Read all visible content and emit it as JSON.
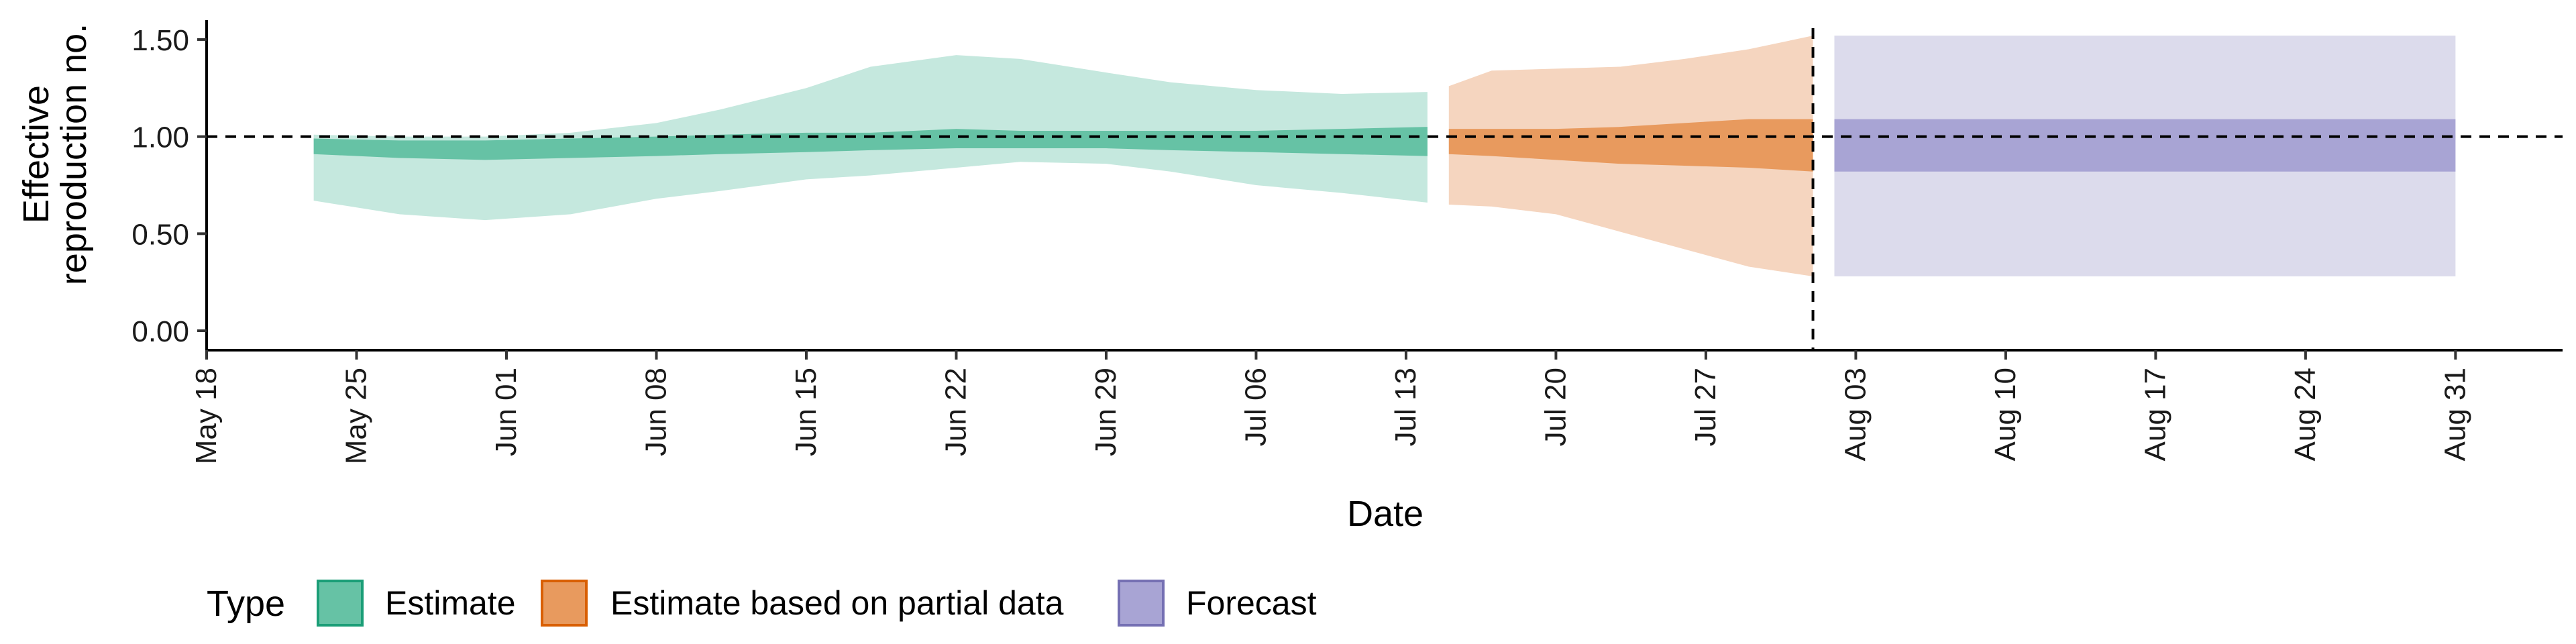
{
  "chart_data": {
    "type": "area",
    "title": "",
    "xlabel": "Date",
    "ylabel_lines": [
      "Effective",
      "reproduction no."
    ],
    "x_ticks": [
      "May 18",
      "May 25",
      "Jun 01",
      "Jun 08",
      "Jun 15",
      "Jun 22",
      "Jun 29",
      "Jul 06",
      "Jul 13",
      "Jul 20",
      "Jul 27",
      "Aug 03",
      "Aug 10",
      "Aug 17",
      "Aug 24",
      "Aug 31"
    ],
    "x_tick_dates": [
      "2020-05-18",
      "2020-05-25",
      "2020-06-01",
      "2020-06-08",
      "2020-06-15",
      "2020-06-22",
      "2020-06-29",
      "2020-07-06",
      "2020-07-13",
      "2020-07-20",
      "2020-07-27",
      "2020-08-03",
      "2020-08-10",
      "2020-08-17",
      "2020-08-24",
      "2020-08-31"
    ],
    "xlim": [
      "2020-05-18",
      "2020-09-05"
    ],
    "ylim": [
      -0.1,
      1.6
    ],
    "y_ticks": [
      0.0,
      0.5,
      1.0,
      1.5
    ],
    "y_tick_labels": [
      "0.00",
      "0.50",
      "1.00",
      "1.50"
    ],
    "hline": 1.0,
    "vline": "2020-08-01",
    "grid": false,
    "legend": {
      "title": "Type",
      "position": "bottom",
      "entries": [
        "Estimate",
        "Estimate based on partial data",
        "Forecast"
      ]
    },
    "series": [
      {
        "name": "Estimate",
        "fill_color": "#66C2A5",
        "outer_color": "#C5E8DE",
        "points": [
          {
            "date": "2020-05-23",
            "lo90": 0.67,
            "lo50": 0.91,
            "hi50": 0.99,
            "hi90": 1.01
          },
          {
            "date": "2020-05-27",
            "lo90": 0.6,
            "lo50": 0.89,
            "hi50": 0.98,
            "hi90": 1.0
          },
          {
            "date": "2020-05-31",
            "lo90": 0.57,
            "lo50": 0.88,
            "hi50": 0.98,
            "hi90": 1.0
          },
          {
            "date": "2020-06-04",
            "lo90": 0.6,
            "lo50": 0.89,
            "hi50": 0.99,
            "hi90": 1.02
          },
          {
            "date": "2020-06-08",
            "lo90": 0.68,
            "lo50": 0.9,
            "hi50": 1.0,
            "hi90": 1.07
          },
          {
            "date": "2020-06-11",
            "lo90": 0.72,
            "lo50": 0.91,
            "hi50": 1.01,
            "hi90": 1.14
          },
          {
            "date": "2020-06-15",
            "lo90": 0.78,
            "lo50": 0.92,
            "hi50": 1.02,
            "hi90": 1.25
          },
          {
            "date": "2020-06-18",
            "lo90": 0.8,
            "lo50": 0.93,
            "hi50": 1.02,
            "hi90": 1.36
          },
          {
            "date": "2020-06-22",
            "lo90": 0.84,
            "lo50": 0.94,
            "hi50": 1.04,
            "hi90": 1.42
          },
          {
            "date": "2020-06-25",
            "lo90": 0.87,
            "lo50": 0.94,
            "hi50": 1.03,
            "hi90": 1.4
          },
          {
            "date": "2020-06-29",
            "lo90": 0.86,
            "lo50": 0.94,
            "hi50": 1.03,
            "hi90": 1.33
          },
          {
            "date": "2020-07-02",
            "lo90": 0.82,
            "lo50": 0.93,
            "hi50": 1.03,
            "hi90": 1.28
          },
          {
            "date": "2020-07-06",
            "lo90": 0.75,
            "lo50": 0.92,
            "hi50": 1.03,
            "hi90": 1.24
          },
          {
            "date": "2020-07-10",
            "lo90": 0.71,
            "lo50": 0.91,
            "hi50": 1.04,
            "hi90": 1.22
          },
          {
            "date": "2020-07-14",
            "lo90": 0.66,
            "lo50": 0.9,
            "hi50": 1.05,
            "hi90": 1.23
          }
        ]
      },
      {
        "name": "Estimate based on partial data",
        "fill_color": "#E89A5E",
        "outer_color": "#F5D5BF",
        "points": [
          {
            "date": "2020-07-15",
            "lo90": 0.65,
            "lo50": 0.91,
            "hi50": 1.04,
            "hi90": 1.26
          },
          {
            "date": "2020-07-17",
            "lo90": 0.64,
            "lo50": 0.9,
            "hi50": 1.04,
            "hi90": 1.34
          },
          {
            "date": "2020-07-20",
            "lo90": 0.6,
            "lo50": 0.88,
            "hi50": 1.04,
            "hi90": 1.35
          },
          {
            "date": "2020-07-23",
            "lo90": 0.51,
            "lo50": 0.86,
            "hi50": 1.05,
            "hi90": 1.36
          },
          {
            "date": "2020-07-26",
            "lo90": 0.42,
            "lo50": 0.85,
            "hi50": 1.07,
            "hi90": 1.4
          },
          {
            "date": "2020-07-29",
            "lo90": 0.33,
            "lo50": 0.84,
            "hi50": 1.09,
            "hi90": 1.45
          },
          {
            "date": "2020-08-01",
            "lo90": 0.28,
            "lo50": 0.82,
            "hi50": 1.09,
            "hi90": 1.52
          }
        ]
      },
      {
        "name": "Forecast",
        "fill_color": "#A8A4D4",
        "outer_color": "#DCDBEC",
        "points": [
          {
            "date": "2020-08-02",
            "lo90": 0.28,
            "lo50": 0.82,
            "hi50": 1.09,
            "hi90": 1.52
          },
          {
            "date": "2020-08-31",
            "lo90": 0.28,
            "lo50": 0.82,
            "hi50": 1.09,
            "hi90": 1.52
          }
        ]
      }
    ]
  },
  "colors": {
    "estimate": "#66C2A5",
    "partial": "#E89A5E",
    "forecast": "#A8A4D4",
    "estimate_border": "#1B9E77",
    "partial_border": "#D95F02",
    "forecast_border": "#7570B3"
  }
}
